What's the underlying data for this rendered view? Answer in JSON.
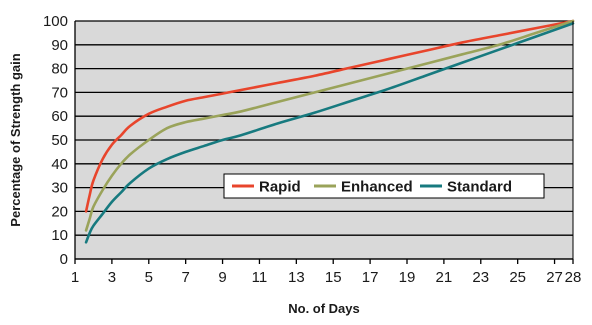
{
  "chart_data": {
    "type": "line",
    "title": "",
    "xlabel": "No. of Days",
    "ylabel": "Percentage of Strength gain",
    "xlim": [
      1,
      28
    ],
    "ylim": [
      0,
      100
    ],
    "x_ticks": [
      1,
      3,
      5,
      7,
      9,
      11,
      13,
      15,
      17,
      19,
      21,
      23,
      25,
      27,
      28
    ],
    "y_ticks": [
      0,
      10,
      20,
      30,
      40,
      50,
      60,
      70,
      80,
      90,
      100
    ],
    "grid": "horizontal",
    "plot_background": "#d9d9d9",
    "legend_position": "center-right",
    "series": [
      {
        "name": "Rapid",
        "color": "#e8452c",
        "x": [
          1.6,
          1.8,
          2,
          2.5,
          3,
          3.5,
          4,
          5,
          6,
          7,
          8,
          9,
          10,
          12,
          14,
          16,
          18,
          20,
          22,
          24,
          26,
          28
        ],
        "y": [
          20,
          27,
          33,
          42,
          48,
          52,
          56,
          61,
          64,
          66.5,
          68,
          69.5,
          71,
          74,
          77,
          80.5,
          84,
          87.5,
          91,
          94,
          97,
          100
        ]
      },
      {
        "name": "Enhanced",
        "color": "#9aa35a",
        "x": [
          1.6,
          1.8,
          2,
          2.5,
          3,
          3.5,
          4,
          5,
          6,
          7,
          8,
          9,
          10,
          12,
          14,
          16,
          18,
          20,
          22,
          24,
          26,
          28
        ],
        "y": [
          12,
          17,
          22,
          29,
          35,
          40,
          44,
          50,
          55,
          57.5,
          59,
          60.5,
          62,
          66,
          70,
          74,
          78,
          82,
          86,
          90,
          95,
          100
        ]
      },
      {
        "name": "Standard",
        "color": "#177a7f",
        "x": [
          1.6,
          1.8,
          2,
          2.5,
          3,
          3.5,
          4,
          5,
          6,
          7,
          8,
          9,
          10,
          12,
          14,
          16,
          18,
          20,
          22,
          24,
          26,
          28
        ],
        "y": [
          7,
          11,
          14,
          19,
          24,
          28,
          32,
          38,
          42,
          45,
          47.5,
          50,
          52,
          57,
          61.5,
          66.5,
          71.5,
          77,
          82.5,
          88,
          93.5,
          99
        ]
      }
    ]
  }
}
